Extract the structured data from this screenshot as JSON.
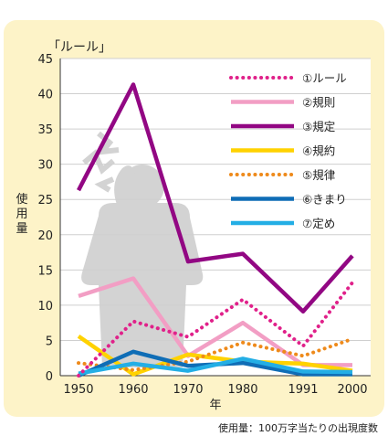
{
  "chart_data": {
    "type": "line",
    "title": "「ルール」",
    "xlabel": "年",
    "ylabel": "使用量",
    "note": "使用量：100万字当たりの出現度数",
    "x": [
      1950,
      1960,
      1970,
      1980,
      1991,
      2000
    ],
    "x_ticks": [
      "1950",
      "1960",
      "1970",
      "1980",
      "1991",
      "2000"
    ],
    "y_ticks": [
      "0",
      "5",
      "10",
      "15",
      "20",
      "25",
      "30",
      "35",
      "40",
      "45"
    ],
    "ylim": [
      0,
      45
    ],
    "grid": true,
    "legend_position": "top-right",
    "series": [
      {
        "name": "①ルール",
        "values": [
          0,
          7.7,
          5.5,
          10.8,
          4.2,
          13.2
        ],
        "color": "#e0218a",
        "style": "dotted"
      },
      {
        "name": "②規則",
        "values": [
          11.3,
          13.8,
          2.8,
          7.5,
          1.5,
          1.5
        ],
        "color": "#f29ec4",
        "style": "solid"
      },
      {
        "name": "③規定",
        "values": [
          26.3,
          41.3,
          16.2,
          17.3,
          9.1,
          17.0
        ],
        "color": "#920783",
        "style": "solid"
      },
      {
        "name": "④規約",
        "values": [
          5.6,
          0.2,
          3.0,
          2.0,
          1.7,
          0.7
        ],
        "color": "#ffd200",
        "style": "solid"
      },
      {
        "name": "⑤規律",
        "values": [
          1.8,
          0.8,
          2.0,
          4.7,
          2.8,
          5.2
        ],
        "color": "#ee8a1b",
        "style": "dotted"
      },
      {
        "name": "⑥きまり",
        "values": [
          0,
          3.4,
          1.4,
          1.8,
          0.2,
          0.2
        ],
        "color": "#0f6db6",
        "style": "solid"
      },
      {
        "name": "⑦定め",
        "values": [
          0.3,
          1.7,
          0.7,
          2.4,
          0.6,
          0.5
        ],
        "color": "#23aee5",
        "style": "solid"
      }
    ]
  }
}
